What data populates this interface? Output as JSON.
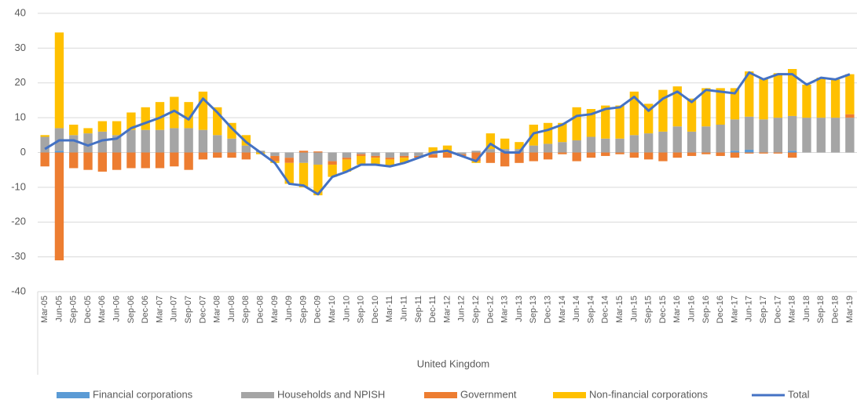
{
  "chart_data": {
    "type": "stacked-bar-line",
    "xlabel": "United Kingdom",
    "categories": [
      "Mar-05",
      "Jun-05",
      "Sep-05",
      "Dec-05",
      "Mar-06",
      "Jun-06",
      "Sep-06",
      "Dec-06",
      "Mar-07",
      "Jun-07",
      "Sep-07",
      "Dec-07",
      "Mar-08",
      "Jun-08",
      "Sep-08",
      "Dec-08",
      "Mar-09",
      "Jun-09",
      "Sep-09",
      "Dec-09",
      "Mar-10",
      "Jun-10",
      "Sep-10",
      "Dec-10",
      "Mar-11",
      "Jun-11",
      "Sep-11",
      "Dec-11",
      "Mar-12",
      "Jun-12",
      "Sep-12",
      "Dec-12",
      "Mar-13",
      "Jun-13",
      "Sep-13",
      "Dec-13",
      "Mar-14",
      "Jun-14",
      "Sep-14",
      "Dec-14",
      "Mar-15",
      "Jun-15",
      "Sep-15",
      "Dec-15",
      "Mar-16",
      "Jun-16",
      "Sep-16",
      "Dec-16",
      "Mar-17",
      "Jun-17",
      "Sep-17",
      "Dec-17",
      "Mar-18",
      "Jun-18",
      "Sep-18",
      "Dec-18",
      "Mar-19"
    ],
    "series": [
      {
        "name": "Financial corporations",
        "color": "#5b9bd5",
        "kind": "bar",
        "values": [
          0,
          0.5,
          0,
          0,
          0,
          0,
          0,
          0,
          0,
          0,
          0,
          0,
          0,
          0,
          0,
          0,
          0,
          0,
          0,
          0,
          0,
          0,
          0,
          0,
          0,
          0,
          0,
          0,
          0,
          0,
          0,
          0,
          0,
          0,
          0,
          0,
          0,
          0,
          0,
          0,
          0,
          0,
          0,
          0,
          0,
          0,
          0,
          0,
          0.5,
          0.8,
          0,
          0,
          0.5,
          0,
          0,
          0,
          0
        ]
      },
      {
        "name": "Households and NPISH",
        "color": "#a5a5a5",
        "kind": "bar",
        "values": [
          4.5,
          6.5,
          5,
          5.5,
          6,
          5,
          6.5,
          6.5,
          6.5,
          7,
          7,
          6.5,
          5,
          4,
          2,
          0.5,
          -1,
          -1.5,
          -3,
          -3.5,
          -2.5,
          -1.5,
          -0.5,
          -1,
          -1.5,
          -1,
          -1,
          -0.5,
          0,
          -0.5,
          0.5,
          1,
          1,
          1,
          2,
          2.5,
          3,
          3.5,
          4.5,
          4,
          4,
          5,
          5.5,
          6,
          7.5,
          6,
          7.5,
          8,
          9,
          9.5,
          9.5,
          10,
          10,
          10,
          10,
          10,
          10
        ]
      },
      {
        "name": "Government",
        "color": "#ed7d31",
        "kind": "bar",
        "values": [
          -4,
          -31,
          -4.5,
          -5,
          -5.5,
          -5,
          -4.5,
          -4.5,
          -4.5,
          -4,
          -5,
          -2,
          -1.5,
          -1.5,
          -2,
          0,
          -1.5,
          -1.5,
          0.5,
          0.3,
          -1,
          -0.5,
          -0.5,
          -0.5,
          -0.5,
          -0.5,
          -0.5,
          -1,
          -1.5,
          -0.5,
          -2.5,
          -3,
          -4,
          -3,
          -2.5,
          -2,
          -0.5,
          -2.5,
          -1.5,
          -1,
          -0.5,
          -1.5,
          -2,
          -2.5,
          -1.5,
          -1,
          -0.5,
          -1,
          -1.5,
          -0.3,
          -0.3,
          -0.3,
          -1.5,
          0,
          0,
          0,
          1
        ]
      },
      {
        "name": "Non-financial corporations",
        "color": "#ffc000",
        "kind": "bar",
        "values": [
          0.5,
          27.5,
          3,
          1.5,
          3,
          4,
          5,
          6.5,
          8,
          9,
          7.5,
          11,
          8,
          4.5,
          3,
          -0.5,
          -0.5,
          -6,
          -7,
          -8.8,
          -3.5,
          -3.5,
          -2.5,
          -2,
          -2,
          -1.5,
          0,
          1.5,
          2,
          0,
          -0.5,
          4.5,
          3,
          2,
          6,
          6,
          5.5,
          9.5,
          8,
          9.5,
          9.5,
          12.5,
          8.5,
          12,
          11.5,
          9.5,
          11,
          10.5,
          9,
          13,
          11.8,
          12.8,
          13.5,
          9.5,
          11.5,
          11,
          11.5
        ]
      },
      {
        "name": "Total",
        "color": "#4472c4",
        "kind": "line",
        "values": [
          1,
          3.5,
          3.5,
          2,
          3.5,
          4,
          7,
          8.5,
          10,
          12,
          9.5,
          15.5,
          11.5,
          7,
          3,
          0,
          -3,
          -9,
          -9.5,
          -12,
          -7,
          -5.5,
          -3.5,
          -3.5,
          -4,
          -3,
          -1.5,
          0,
          0.5,
          -1,
          -2.5,
          2.5,
          0,
          0,
          5.5,
          6.5,
          8,
          10.5,
          11,
          12.5,
          13,
          16,
          12,
          15.5,
          17.5,
          14.5,
          18,
          17.5,
          17,
          23,
          21,
          22.5,
          22.5,
          19.5,
          21.5,
          21,
          22.5
        ]
      }
    ],
    "ylim": [
      -40,
      40
    ],
    "yticks": [
      40,
      30,
      20,
      10,
      0,
      -10,
      -20,
      -30,
      -40
    ],
    "grid": true,
    "legend": "bottom"
  }
}
